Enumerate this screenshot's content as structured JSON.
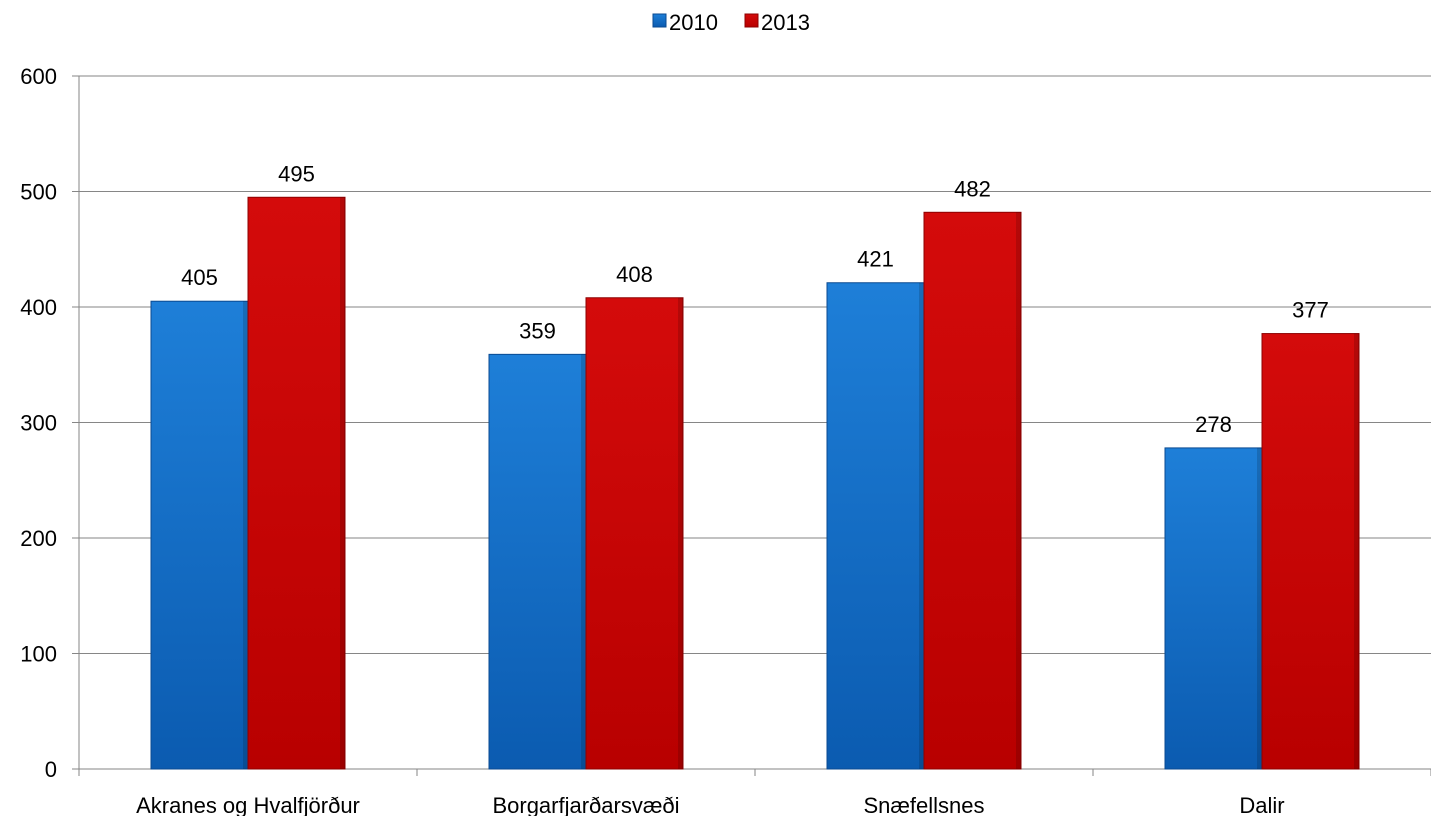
{
  "chart_data": {
    "type": "bar",
    "categories": [
      "Akranes og Hvalfjörður",
      "Borgarfjarðarsvæði",
      "Snæfellsnes",
      "Dalir"
    ],
    "series": [
      {
        "name": "2010",
        "values": [
          405,
          359,
          421,
          278
        ],
        "color": "#1565C0"
      },
      {
        "name": "2013",
        "values": [
          495,
          408,
          482,
          377
        ],
        "color": "#C00000"
      }
    ],
    "ylim": [
      0,
      600
    ],
    "yticks": [
      "0",
      "100",
      "200",
      "300",
      "400",
      "500",
      "600"
    ],
    "grid": true,
    "legend_position": "top-center",
    "data_labels": true
  }
}
